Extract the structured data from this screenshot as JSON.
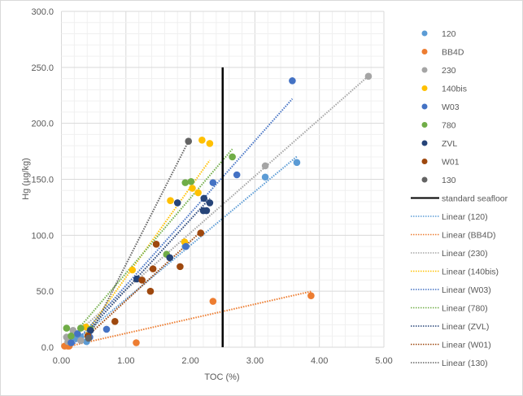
{
  "chart_data": {
    "type": "scatter",
    "title": "",
    "xlabel": "TOC (%)",
    "ylabel": "Hg (µg/kg)",
    "xlim": [
      0,
      5
    ],
    "ylim": [
      0,
      300
    ],
    "xticks": [
      "0.00",
      "1.00",
      "2.00",
      "3.00",
      "4.00",
      "5.00"
    ],
    "yticks": [
      "0.0",
      "50.0",
      "100.0",
      "150.0",
      "200.0",
      "250.0",
      "300.0"
    ],
    "grid": true,
    "legend_position": "right",
    "series": [
      {
        "name": "120",
        "color": "#5B9BD5",
        "trend_label": "Linear (120)",
        "points": [
          [
            3.65,
            165
          ],
          [
            3.16,
            152
          ],
          [
            1.92,
            90
          ],
          [
            0.39,
            5
          ],
          [
            0.22,
            8
          ],
          [
            0.12,
            4
          ],
          [
            0.3,
            9
          ]
        ]
      },
      {
        "name": "BB4D",
        "color": "#ED7D31",
        "trend_label": "Linear (BB4D)",
        "points": [
          [
            3.87,
            46
          ],
          [
            2.35,
            41
          ],
          [
            1.16,
            4
          ],
          [
            0.05,
            1
          ],
          [
            0.1,
            1
          ],
          [
            0.12,
            1
          ]
        ]
      },
      {
        "name": "230",
        "color": "#A5A5A5",
        "trend_label": "Linear (230)",
        "points": [
          [
            4.76,
            242
          ],
          [
            3.16,
            162
          ],
          [
            0.08,
            9
          ],
          [
            0.18,
            15
          ],
          [
            0.3,
            6
          ],
          [
            0.1,
            5
          ]
        ]
      },
      {
        "name": "140bis",
        "color": "#FFC000",
        "trend_label": "Linear (140bis)",
        "points": [
          [
            2.18,
            185
          ],
          [
            2.3,
            182
          ],
          [
            2.03,
            142
          ],
          [
            2.12,
            138
          ],
          [
            1.69,
            131
          ],
          [
            1.1,
            69
          ],
          [
            1.91,
            94
          ],
          [
            0.38,
            18
          ]
        ]
      },
      {
        "name": "W03",
        "color": "#4472C4",
        "trend_label": "Linear (W03)",
        "points": [
          [
            3.58,
            238
          ],
          [
            2.72,
            154
          ],
          [
            2.35,
            147
          ],
          [
            1.93,
            90
          ],
          [
            0.7,
            16
          ],
          [
            0.25,
            12
          ],
          [
            0.44,
            9
          ],
          [
            0.15,
            4
          ]
        ]
      },
      {
        "name": "780",
        "color": "#70AD47",
        "trend_label": "Linear (780)",
        "points": [
          [
            2.65,
            170
          ],
          [
            1.92,
            147
          ],
          [
            2.01,
            148
          ],
          [
            1.63,
            83
          ],
          [
            0.08,
            17
          ],
          [
            0.3,
            17
          ],
          [
            0.15,
            10
          ],
          [
            0.45,
            16
          ]
        ]
      },
      {
        "name": "ZVL",
        "color": "#264478",
        "trend_label": "Linear (ZVL)",
        "points": [
          [
            2.21,
            133
          ],
          [
            2.3,
            129
          ],
          [
            1.8,
            129
          ],
          [
            2.2,
            122
          ],
          [
            2.25,
            122
          ],
          [
            1.68,
            80
          ],
          [
            1.17,
            61
          ],
          [
            0.45,
            15
          ]
        ]
      },
      {
        "name": "W01",
        "color": "#9E480E",
        "trend_label": "Linear (W01)",
        "points": [
          [
            2.16,
            102
          ],
          [
            1.47,
            92
          ],
          [
            1.42,
            70
          ],
          [
            1.84,
            72
          ],
          [
            1.25,
            60
          ],
          [
            1.38,
            50
          ],
          [
            0.83,
            23
          ],
          [
            0.41,
            10
          ]
        ]
      },
      {
        "name": "130",
        "color": "#636363",
        "trend_label": "Linear (130)",
        "points": [
          [
            1.97,
            184
          ],
          [
            0.42,
            8
          ]
        ]
      }
    ],
    "reference_line": {
      "name": "standard seafloor",
      "x": 2.5,
      "y_range": [
        0,
        250
      ],
      "color": "#000000"
    }
  }
}
